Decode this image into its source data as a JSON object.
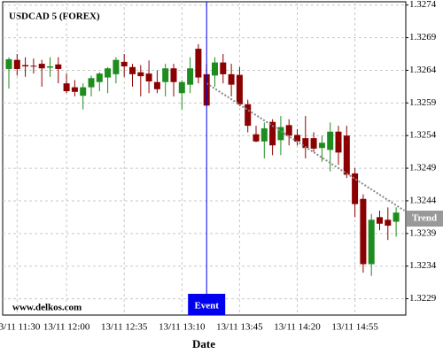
{
  "chart_data": {
    "type": "candlestick",
    "title": "USDCAD 5 (FOREX)",
    "x_label": "Date",
    "watermark": "www.delkos.com",
    "categories": [
      null,
      "13/11 11:30",
      null,
      null,
      null,
      null,
      null,
      "13/11 12:00",
      null,
      null,
      null,
      null,
      null,
      null,
      "13/11 12:35",
      null,
      null,
      null,
      null,
      null,
      null,
      "13/11 13:10",
      null,
      null,
      null,
      null,
      null,
      null,
      "13/11 13:45",
      null,
      null,
      null,
      null,
      null,
      null,
      "13/11 14:20",
      null,
      null,
      null,
      null,
      null,
      null,
      "13/11 14:55",
      null,
      null,
      null,
      null,
      null
    ],
    "open": [
      1.32642,
      1.32656,
      1.32648,
      1.32647,
      1.3265,
      1.32644,
      1.32649,
      1.3262,
      1.32614,
      1.32601,
      1.32614,
      1.32622,
      1.32629,
      1.32634,
      1.32653,
      1.32645,
      1.32637,
      1.32635,
      1.32622,
      1.32622,
      1.32643,
      1.32605,
      1.32618,
      1.32673,
      1.32634,
      1.32632,
      1.32652,
      1.32634,
      1.32633,
      1.32588,
      1.32542,
      1.32531,
      1.32561,
      1.32533,
      1.32556,
      1.32541,
      1.32536,
      1.32536,
      1.32521,
      1.32518,
      1.32546,
      1.3254,
      1.32482,
      1.32443,
      1.32343,
      1.32415,
      1.32411,
      1.32408
    ],
    "high": [
      1.3266,
      1.32665,
      1.3266,
      1.32658,
      1.32656,
      1.3266,
      1.3266,
      1.32635,
      1.32625,
      1.3262,
      1.32632,
      1.32637,
      1.32645,
      1.3266,
      1.32665,
      1.3265,
      1.32648,
      1.32655,
      1.3264,
      1.3265,
      1.3265,
      1.32625,
      1.3266,
      1.3268,
      1.3265,
      1.3266,
      1.32665,
      1.3265,
      1.32645,
      1.32595,
      1.32555,
      1.3256,
      1.32565,
      1.3257,
      1.32565,
      1.3255,
      1.3257,
      1.32545,
      1.3254,
      1.3256,
      1.32555,
      1.32555,
      1.3249,
      1.3245,
      1.3242,
      1.32425,
      1.3243,
      1.3243
    ],
    "low": [
      1.32612,
      1.32632,
      1.3263,
      1.32635,
      1.32615,
      1.3263,
      1.3262,
      1.32605,
      1.326,
      1.3258,
      1.326,
      1.32608,
      1.32605,
      1.3262,
      1.3263,
      1.32615,
      1.326,
      1.32605,
      1.32605,
      1.326,
      1.326,
      1.3258,
      1.32605,
      1.3262,
      1.32585,
      1.32615,
      1.3262,
      1.326,
      1.32585,
      1.32545,
      1.3253,
      1.32505,
      1.3251,
      1.3251,
      1.32525,
      1.32525,
      1.32505,
      1.32515,
      1.325,
      1.32485,
      1.32495,
      1.32475,
      1.32415,
      1.3233,
      1.32325,
      1.32395,
      1.3238,
      1.32385
    ],
    "close": [
      1.32657,
      1.32642,
      1.32646,
      1.32646,
      1.32643,
      1.32646,
      1.32642,
      1.32608,
      1.32607,
      1.32614,
      1.32628,
      1.32635,
      1.32643,
      1.32656,
      1.32646,
      1.32634,
      1.32631,
      1.32623,
      1.32611,
      1.32643,
      1.32622,
      1.32622,
      1.32643,
      1.32629,
      1.32586,
      1.32652,
      1.32634,
      1.32618,
      1.32588,
      1.32555,
      1.32531,
      1.32551,
      1.32525,
      1.32553,
      1.3254,
      1.32531,
      1.32521,
      1.3252,
      1.32529,
      1.32546,
      1.32514,
      1.3248,
      1.32435,
      1.32343,
      1.32411,
      1.32405,
      1.32402,
      1.32422
    ],
    "up_color": "#1e8c1e",
    "down_color": "#8b0000",
    "ylim": [
      1.32265,
      1.32745
    ],
    "yticks": [
      1.3229,
      1.3234,
      1.3239,
      1.3244,
      1.3249,
      1.3254,
      1.3259,
      1.3264,
      1.3269,
      1.3274
    ],
    "grid": true,
    "event": {
      "label": "Event",
      "index": 24,
      "color": "#0000ee"
    },
    "trend": {
      "label": "Trend",
      "x": [
        24,
        48
      ],
      "values": [
        1.3262,
        1.32425
      ]
    }
  }
}
